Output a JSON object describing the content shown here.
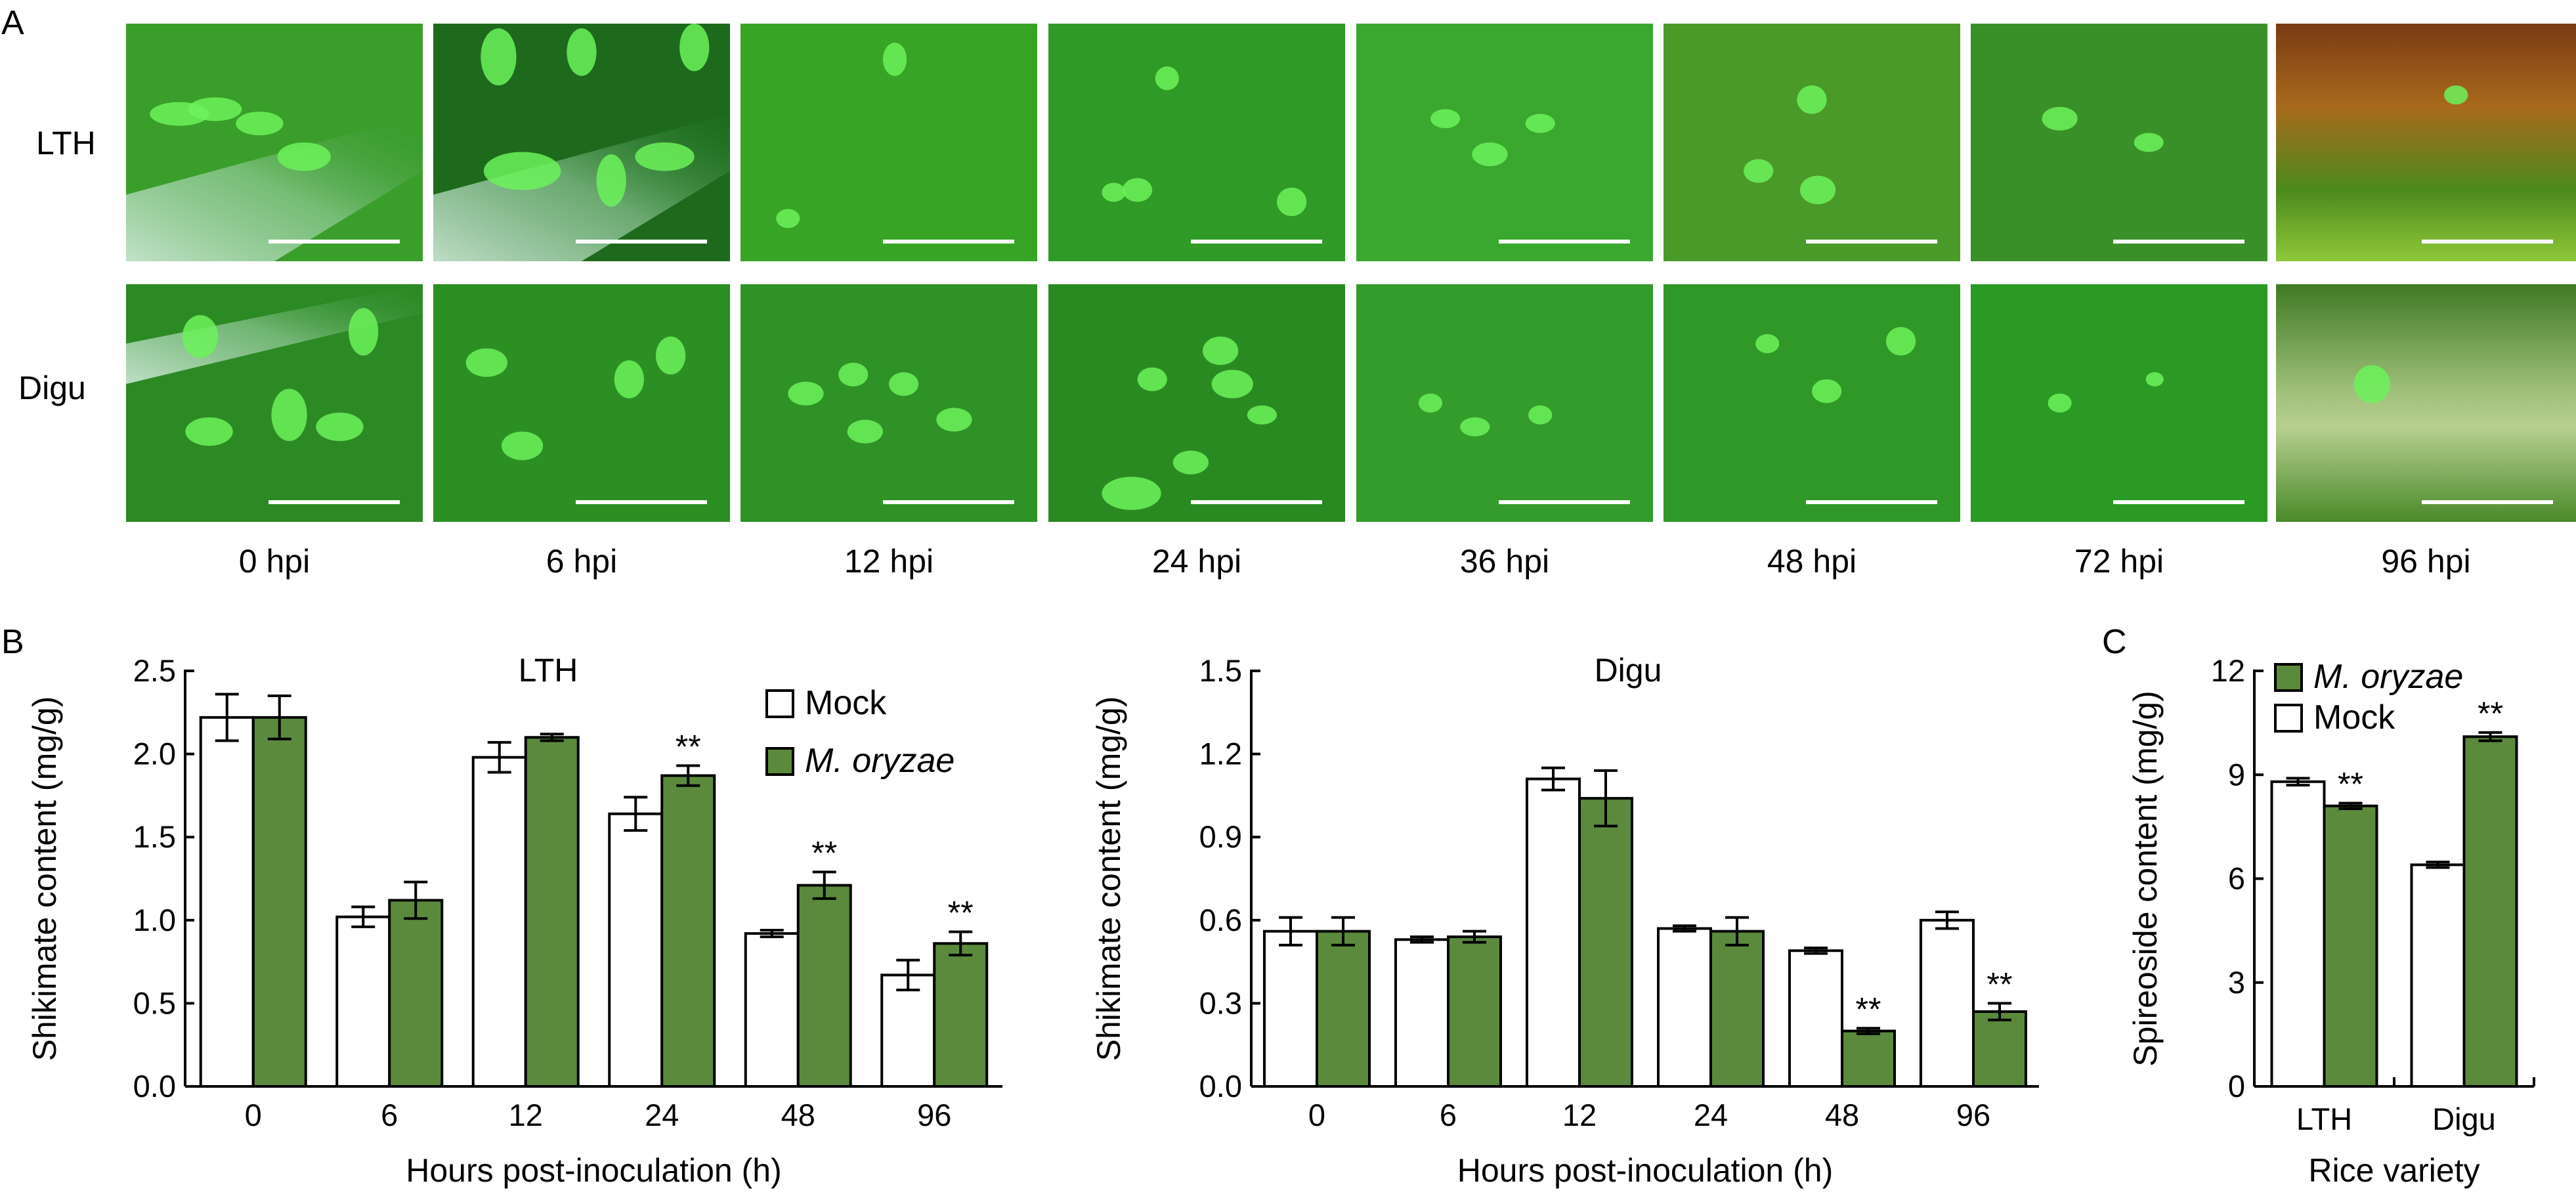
{
  "panel_labels": {
    "a": "A",
    "b": "B",
    "c": "C"
  },
  "micrographs": {
    "row_labels": [
      "LTH",
      "Digu"
    ],
    "column_labels": [
      "0 hpi",
      "6 hpi",
      "12 hpi",
      "24 hpi",
      "36 hpi",
      "48 hpi",
      "72 hpi",
      "96 hpi"
    ]
  },
  "colors": {
    "mock": "#ffffff",
    "infected": "#5b8a3d",
    "stroke": "#000000",
    "tissue_green": "#2fa32a"
  },
  "chart_data": [
    {
      "type": "bar",
      "title": "LTH",
      "xlabel": "Hours post-inoculation (h)",
      "ylabel": "Shikimate content (mg/g)",
      "categories": [
        "0",
        "6",
        "12",
        "24",
        "48",
        "96"
      ],
      "ylim": [
        0,
        2.5
      ],
      "yticks": [
        "0.0",
        "0.5",
        "1.0",
        "1.5",
        "2.0",
        "2.5"
      ],
      "legend": "top-right",
      "series": [
        {
          "name": "Mock",
          "values": [
            2.22,
            1.02,
            1.98,
            1.64,
            0.92,
            0.67
          ],
          "errors": [
            0.14,
            0.06,
            0.09,
            0.1,
            0.02,
            0.09
          ]
        },
        {
          "name": "M. oryzae",
          "values": [
            2.22,
            1.12,
            2.1,
            1.87,
            1.21,
            0.86
          ],
          "errors": [
            0.13,
            0.11,
            0.02,
            0.06,
            0.08,
            0.07
          ]
        }
      ],
      "annotations": [
        "",
        "",
        "",
        "**",
        "**",
        "**"
      ]
    },
    {
      "type": "bar",
      "title": "Digu",
      "xlabel": "Hours post-inoculation (h)",
      "ylabel": "Shikimate content (mg/g)",
      "categories": [
        "0",
        "6",
        "12",
        "24",
        "48",
        "96"
      ],
      "ylim": [
        0,
        1.5
      ],
      "yticks": [
        "0.0",
        "0.3",
        "0.6",
        "0.9",
        "1.2",
        "1.5"
      ],
      "series": [
        {
          "name": "Mock",
          "values": [
            0.56,
            0.53,
            1.11,
            0.57,
            0.49,
            0.6
          ],
          "errors": [
            0.05,
            0.01,
            0.04,
            0.01,
            0.01,
            0.03
          ]
        },
        {
          "name": "M. oryzae",
          "values": [
            0.56,
            0.54,
            1.04,
            0.56,
            0.2,
            0.27
          ],
          "errors": [
            0.05,
            0.02,
            0.1,
            0.05,
            0.01,
            0.03
          ]
        }
      ],
      "annotations": [
        "",
        "",
        "",
        "",
        "**",
        "**"
      ]
    },
    {
      "type": "bar",
      "xlabel": "Rice variety",
      "ylabel": "Spireoside content (mg/g)",
      "categories": [
        "LTH",
        "Digu"
      ],
      "ylim": [
        0,
        12
      ],
      "yticks": [
        "0",
        "3",
        "6",
        "9",
        "12"
      ],
      "legend": "top-left",
      "series": [
        {
          "name": "Mock",
          "values": [
            8.8,
            6.4
          ],
          "errors": [
            0.1,
            0.08
          ]
        },
        {
          "name": "M. oryzae",
          "values": [
            8.1,
            10.1
          ],
          "errors": [
            0.08,
            0.12
          ]
        }
      ],
      "annotations": [
        "**",
        "**"
      ]
    }
  ]
}
